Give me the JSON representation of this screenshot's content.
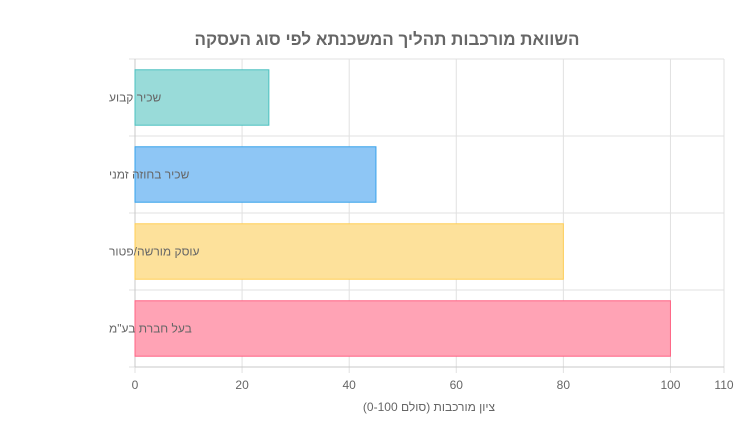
{
  "chart_data": {
    "type": "bar",
    "orientation": "horizontal",
    "title": "השוואת מורכבות תהליך המשכנתא לפי סוג העסקה",
    "xlabel": "ציון מורכבות (סולם 0-100)",
    "ylabel": "",
    "xlim": [
      0,
      110
    ],
    "xticks": [
      0,
      20,
      40,
      60,
      80,
      100,
      110
    ],
    "grid": true,
    "legend": "none",
    "categories": [
      "שכיר קבוע",
      "שכיר בחוזה זמני",
      "עוסק מורשה/פטור",
      "בעל חברת בע\"מ"
    ],
    "values": [
      25,
      45,
      80,
      100
    ],
    "colors": [
      {
        "fill": "#99dbd9",
        "stroke": "#4bc0c0"
      },
      {
        "fill": "#8ec6f5",
        "stroke": "#36a2eb"
      },
      {
        "fill": "#fde19b",
        "stroke": "#ffce56"
      },
      {
        "fill": "#ffa3b5",
        "stroke": "#ff6384"
      }
    ]
  }
}
